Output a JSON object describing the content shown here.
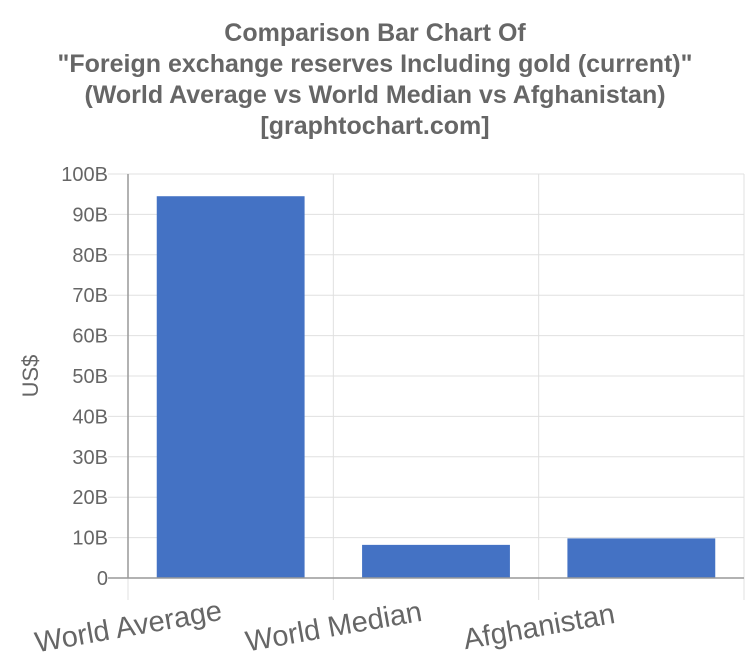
{
  "chart_data": {
    "type": "bar",
    "title": [
      "Comparison Bar Chart Of",
      "\"Foreign exchange reserves Including gold (current)\"",
      "(World Average vs World Median vs Afghanistan)",
      "[graphtochart.com]"
    ],
    "xlabel": "",
    "ylabel": "US$",
    "categories": [
      "World Average",
      "World Median",
      "Afghanistan"
    ],
    "values": [
      94500000000,
      8200000000,
      9800000000
    ],
    "ylim": [
      0,
      100000000000
    ],
    "yticks": [
      "0",
      "10B",
      "20B",
      "30B",
      "40B",
      "50B",
      "60B",
      "70B",
      "80B",
      "90B",
      "100B"
    ],
    "grid": true,
    "legend": "none",
    "bar_color": "#4472c4",
    "grid_color": "#e0e0e0",
    "text_color": "#666666"
  }
}
